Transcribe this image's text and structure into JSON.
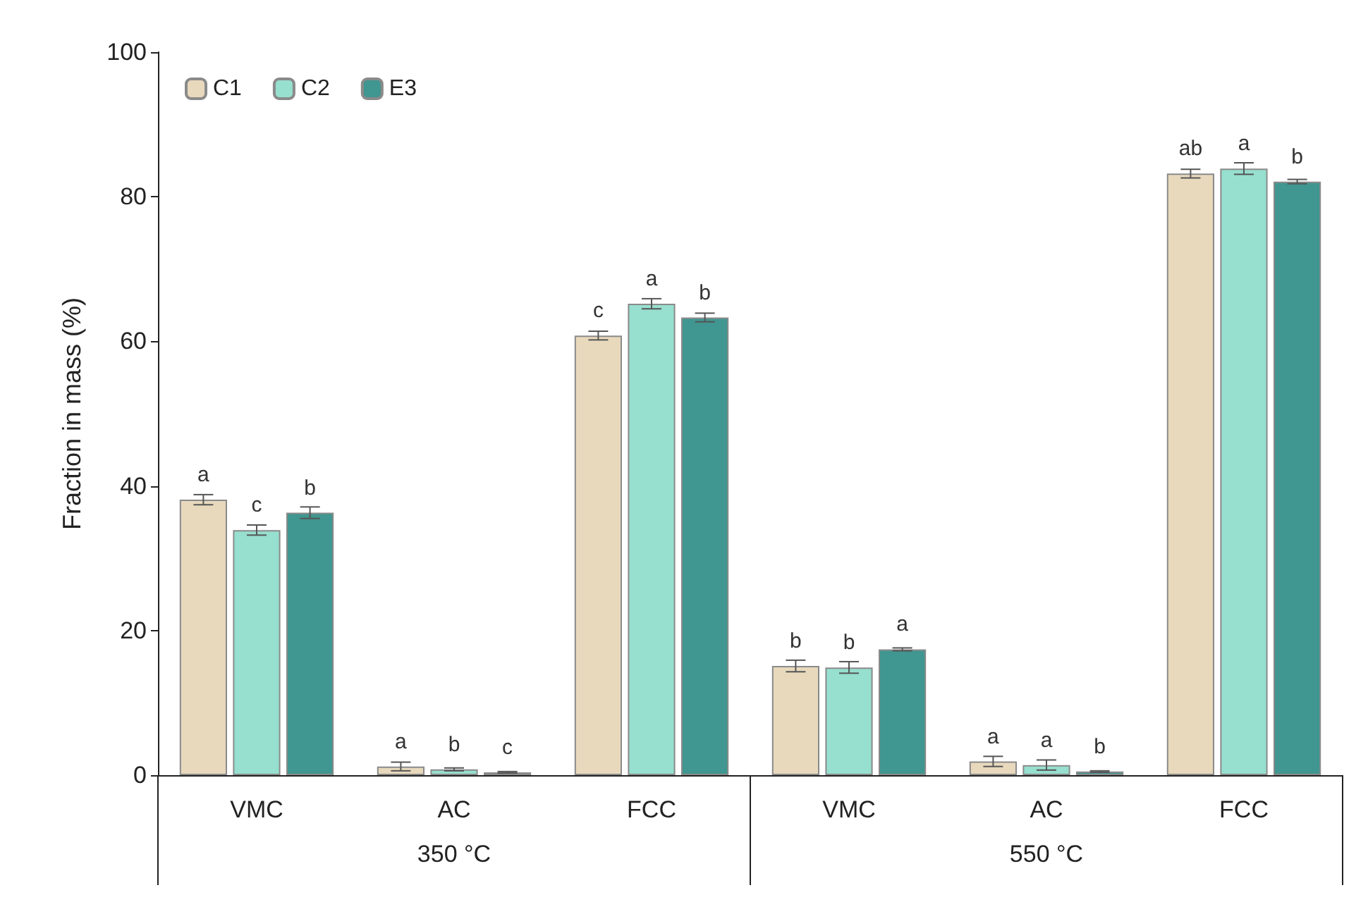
{
  "chart_data": {
    "type": "bar",
    "ylabel": "Fraction in mass (%)",
    "categories": [
      "VMC",
      "AC",
      "FCC",
      "VMC",
      "AC",
      "FCC"
    ],
    "annotations": [
      "350 °C",
      "550 °C"
    ],
    "series": [
      {
        "name": "C1",
        "color": "#e8d9bd",
        "values": [
          38.1,
          1.2,
          60.8,
          15.1,
          1.9,
          83.2
        ],
        "errors": [
          0.7,
          0.6,
          0.6,
          0.8,
          0.7,
          0.6
        ],
        "value_labels": [
          "a",
          "a",
          "c",
          "b",
          "a",
          "ab"
        ]
      },
      {
        "name": "C2",
        "color": "#97dfcf",
        "values": [
          33.9,
          0.8,
          65.2,
          14.9,
          1.4,
          83.9
        ],
        "errors": [
          0.7,
          0.2,
          0.7,
          0.8,
          0.7,
          0.8
        ],
        "value_labels": [
          "c",
          "b",
          "a",
          "b",
          "a",
          "a"
        ]
      },
      {
        "name": "E3",
        "color": "#409690",
        "values": [
          36.3,
          0.4,
          63.3,
          17.4,
          0.5,
          82.1
        ],
        "errors": [
          0.8,
          0.1,
          0.6,
          0.2,
          0.1,
          0.3
        ],
        "value_labels": [
          "b",
          "c",
          "b",
          "a",
          "b",
          "b"
        ]
      }
    ],
    "ylim": [
      0,
      100
    ],
    "yticks": [
      0,
      20,
      40,
      60,
      80,
      100
    ],
    "legend": "top left",
    "grid": false
  }
}
